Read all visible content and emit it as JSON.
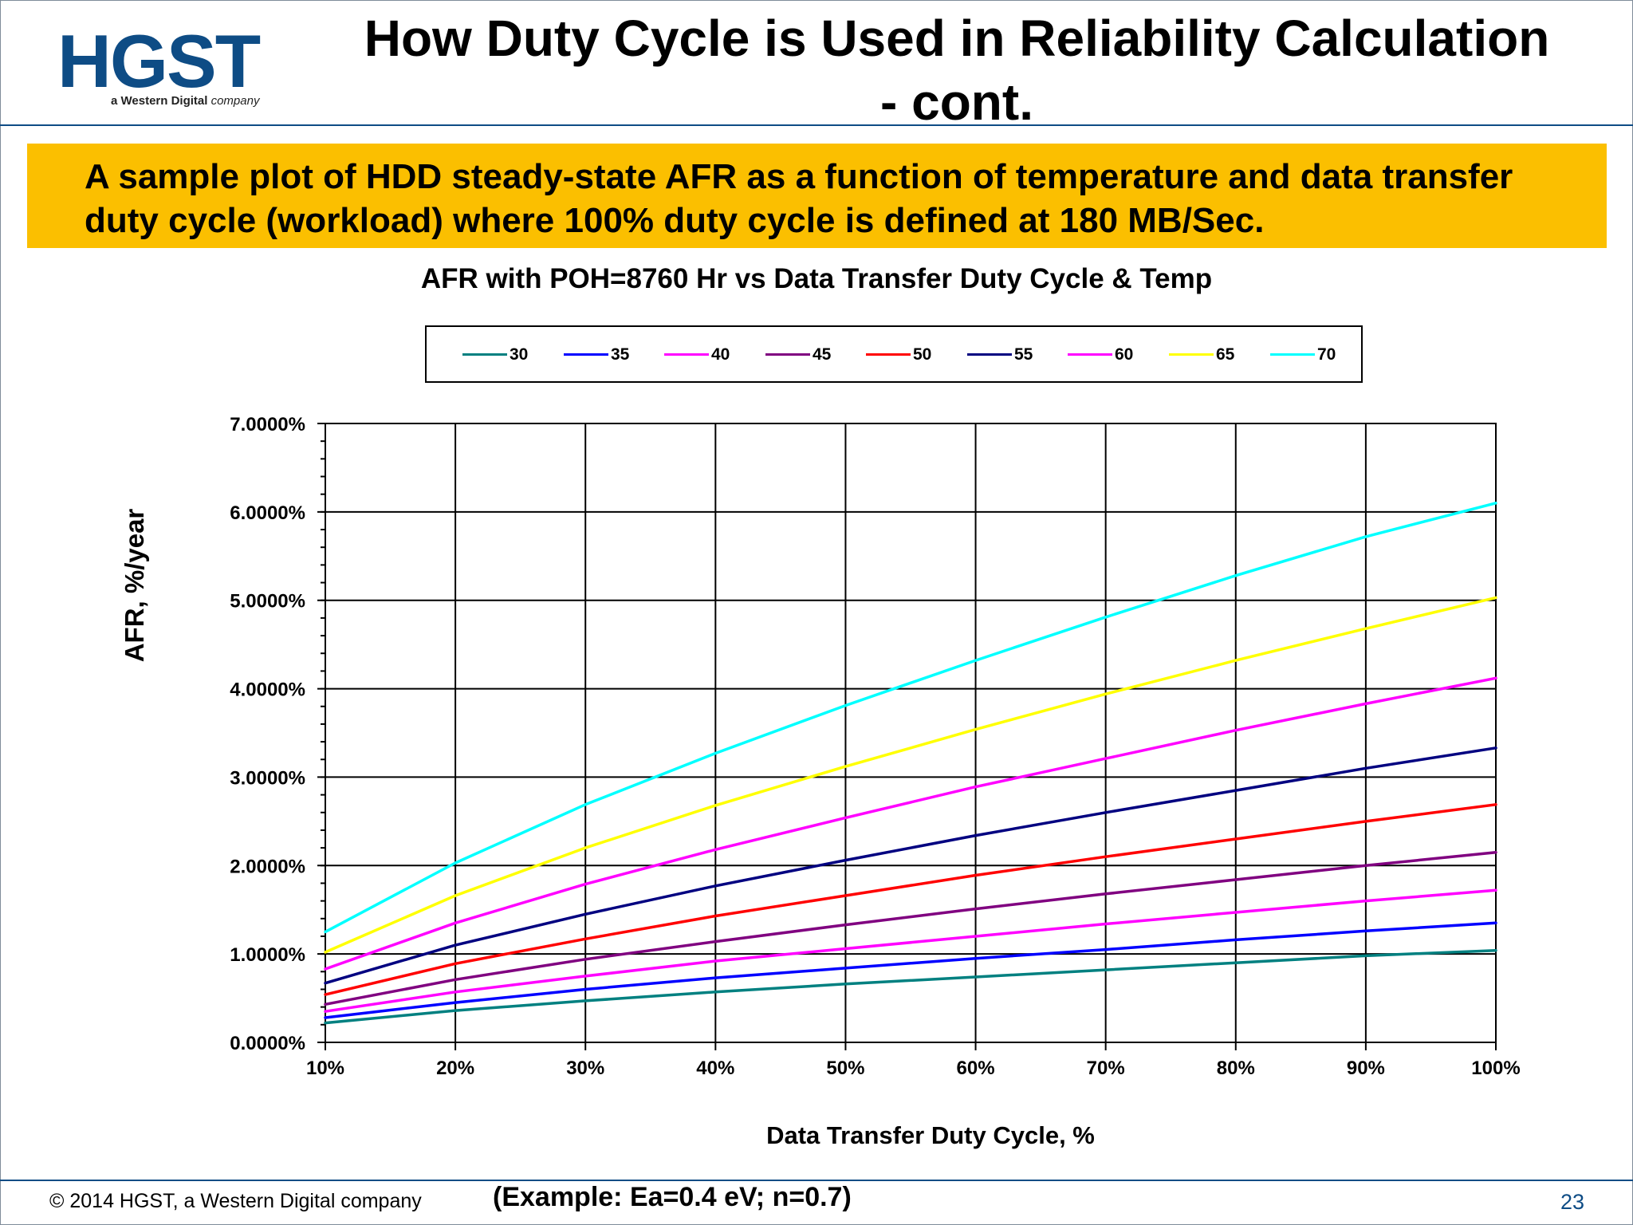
{
  "header": {
    "logo_text": "HGST",
    "logo_sub_bold": "a Western Digital",
    "logo_sub_italic": "company",
    "title_line1": "How Duty Cycle is Used in Reliability Calculation",
    "title_line2": "- cont."
  },
  "banner": {
    "line1": "A sample plot of HDD steady-state AFR as a function of temperature and data transfer",
    "line2": "duty cycle (workload) where 100% duty cycle is defined at 180 MB/Sec."
  },
  "footer": {
    "copyright": "© 2014 HGST, a Western Digital company",
    "example": "(Example: Ea=0.4 eV; n=0.7)",
    "page_number": "23"
  },
  "chart_data": {
    "type": "line",
    "title": "AFR with POH=8760 Hr vs Data Transfer Duty Cycle & Temp",
    "xlabel": "Data Transfer Duty Cycle, %",
    "ylabel": "AFR, %/year",
    "x": [
      10,
      20,
      30,
      40,
      50,
      60,
      70,
      80,
      90,
      100
    ],
    "x_tick_labels": [
      "10%",
      "20%",
      "30%",
      "40%",
      "50%",
      "60%",
      "70%",
      "80%",
      "90%",
      "100%"
    ],
    "y_tick_values": [
      0,
      1,
      2,
      3,
      4,
      5,
      6,
      7
    ],
    "y_tick_labels": [
      "0.0000%",
      "1.0000%",
      "2.0000%",
      "3.0000%",
      "4.0000%",
      "5.0000%",
      "6.0000%",
      "7.0000%"
    ],
    "xlim": [
      10,
      100
    ],
    "ylim": [
      0,
      7
    ],
    "grid": true,
    "legend_position": "top",
    "series": [
      {
        "name": "30",
        "color": "#008080",
        "values": [
          0.22,
          0.36,
          0.47,
          0.57,
          0.66,
          0.74,
          0.82,
          0.9,
          0.98,
          1.04
        ]
      },
      {
        "name": "35",
        "color": "#0000ff",
        "values": [
          0.28,
          0.45,
          0.6,
          0.73,
          0.84,
          0.95,
          1.05,
          1.16,
          1.26,
          1.35
        ]
      },
      {
        "name": "40",
        "color": "#ff00ff",
        "values": [
          0.35,
          0.57,
          0.75,
          0.92,
          1.06,
          1.2,
          1.34,
          1.47,
          1.6,
          1.72
        ]
      },
      {
        "name": "45",
        "color": "#800080",
        "values": [
          0.43,
          0.71,
          0.94,
          1.14,
          1.33,
          1.51,
          1.68,
          1.84,
          2.0,
          2.15
        ]
      },
      {
        "name": "50",
        "color": "#ff0000",
        "values": [
          0.54,
          0.89,
          1.17,
          1.43,
          1.66,
          1.89,
          2.1,
          2.3,
          2.5,
          2.69
        ]
      },
      {
        "name": "55",
        "color": "#000080",
        "values": [
          0.67,
          1.1,
          1.45,
          1.77,
          2.06,
          2.34,
          2.6,
          2.85,
          3.1,
          3.33
        ]
      },
      {
        "name": "60",
        "color": "#ff00ff",
        "values": [
          0.83,
          1.35,
          1.79,
          2.18,
          2.54,
          2.89,
          3.21,
          3.53,
          3.83,
          4.12
        ]
      },
      {
        "name": "65",
        "color": "#ffff00",
        "values": [
          1.02,
          1.66,
          2.2,
          2.68,
          3.12,
          3.54,
          3.94,
          4.32,
          4.68,
          5.03
        ]
      },
      {
        "name": "70",
        "color": "#00ffff",
        "values": [
          1.25,
          2.03,
          2.69,
          3.27,
          3.81,
          4.32,
          4.81,
          5.28,
          5.72,
          6.1
        ]
      }
    ]
  }
}
